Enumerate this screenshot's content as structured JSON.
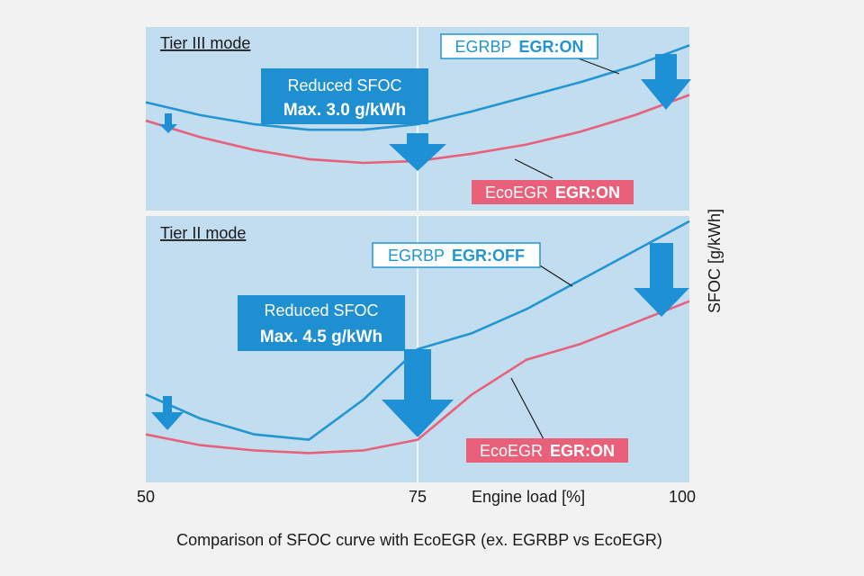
{
  "chart_data": {
    "type": "line",
    "x_ticks": [
      "50",
      "75",
      "100"
    ],
    "xlim": [
      50,
      100
    ],
    "xlabel": "Engine load [%]",
    "ylabel": "SFOC [g/kWh]",
    "caption": "Comparison of SFOC curve with EcoEGR (ex. EGRBP vs EcoEGR)",
    "colors": {
      "egrbp": "#2196d3",
      "ecoegr": "#e8607a",
      "panel": "#c3ddf0",
      "arrow": "#1e90d6",
      "callout": "#1e8fd0"
    },
    "panels": [
      {
        "mode": "Tier III mode",
        "ylim": [
          0,
          100
        ],
        "callout": {
          "line1": "Reduced SFOC",
          "line2": "Max. 3.0 g/kWh"
        },
        "series": [
          {
            "key": "egrbp",
            "label_name": "EGRBP",
            "label_state": "EGR:ON",
            "x": [
              50,
              55,
              60,
              65,
              70,
              75,
              80,
              85,
              90,
              95,
              100
            ],
            "y": [
              59,
              52,
              47,
              44,
              44,
              47,
              54,
              62,
              70,
              79,
              90
            ]
          },
          {
            "key": "ecoegr",
            "label_name": "EcoEGR",
            "label_state": "EGR:ON",
            "x": [
              50,
              55,
              60,
              65,
              70,
              75,
              80,
              85,
              90,
              95,
              100
            ],
            "y": [
              49,
              40,
              33,
              28,
              26,
              27,
              31,
              36,
              43,
              52,
              63
            ]
          }
        ]
      },
      {
        "mode": "Tier II mode",
        "ylim": [
          0,
          100
        ],
        "callout": {
          "line1": "Reduced SFOC",
          "line2": "Max. 4.5 g/kWh"
        },
        "series": [
          {
            "key": "egrbp",
            "label_name": "EGRBP",
            "label_state": "EGR:OFF",
            "x": [
              50,
              55,
              60,
              65,
              70,
              75,
              80,
              85,
              90,
              95,
              100
            ],
            "y": [
              33,
              24,
              18,
              16,
              31,
              50,
              56,
              65,
              76,
              87,
              98
            ]
          },
          {
            "key": "ecoegr",
            "label_name": "EcoEGR",
            "label_state": "EGR:ON",
            "x": [
              50,
              55,
              60,
              65,
              70,
              75,
              80,
              85,
              90,
              95,
              100
            ],
            "y": [
              18,
              14,
              12,
              11,
              12,
              16,
              33,
              46,
              52,
              60,
              68
            ]
          }
        ]
      }
    ]
  }
}
